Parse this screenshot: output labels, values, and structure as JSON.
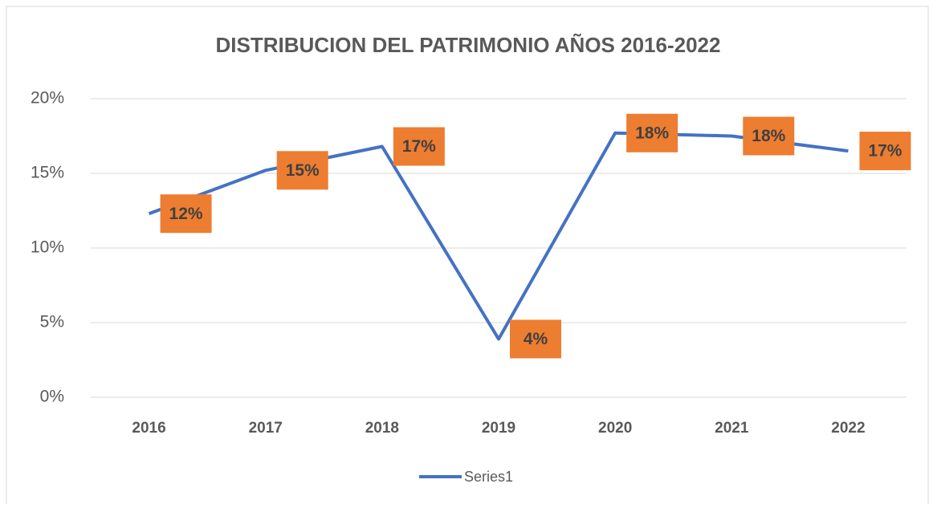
{
  "chart_data": {
    "type": "line",
    "title": "DISTRIBUCION DEL PATRIMONIO AÑOS 2016-2022",
    "categories": [
      "2016",
      "2017",
      "2018",
      "2019",
      "2020",
      "2021",
      "2022"
    ],
    "series": [
      {
        "name": "Series1",
        "color": "#4472c4",
        "values": [
          12.3,
          15.2,
          16.8,
          3.9,
          17.7,
          17.5,
          16.5
        ],
        "value_labels": [
          "12%",
          "15%",
          "17%",
          "4%",
          "18%",
          "18%",
          "17%"
        ]
      }
    ],
    "ylim": [
      0,
      20
    ],
    "yticks": [
      {
        "value": 0,
        "label": "0%"
      },
      {
        "value": 5,
        "label": "5%"
      },
      {
        "value": 10,
        "label": "10%"
      },
      {
        "value": 15,
        "label": "15%"
      },
      {
        "value": 20,
        "label": "20%"
      }
    ],
    "grid": true,
    "legend": "bottom",
    "label_color": "#ed7d31"
  }
}
